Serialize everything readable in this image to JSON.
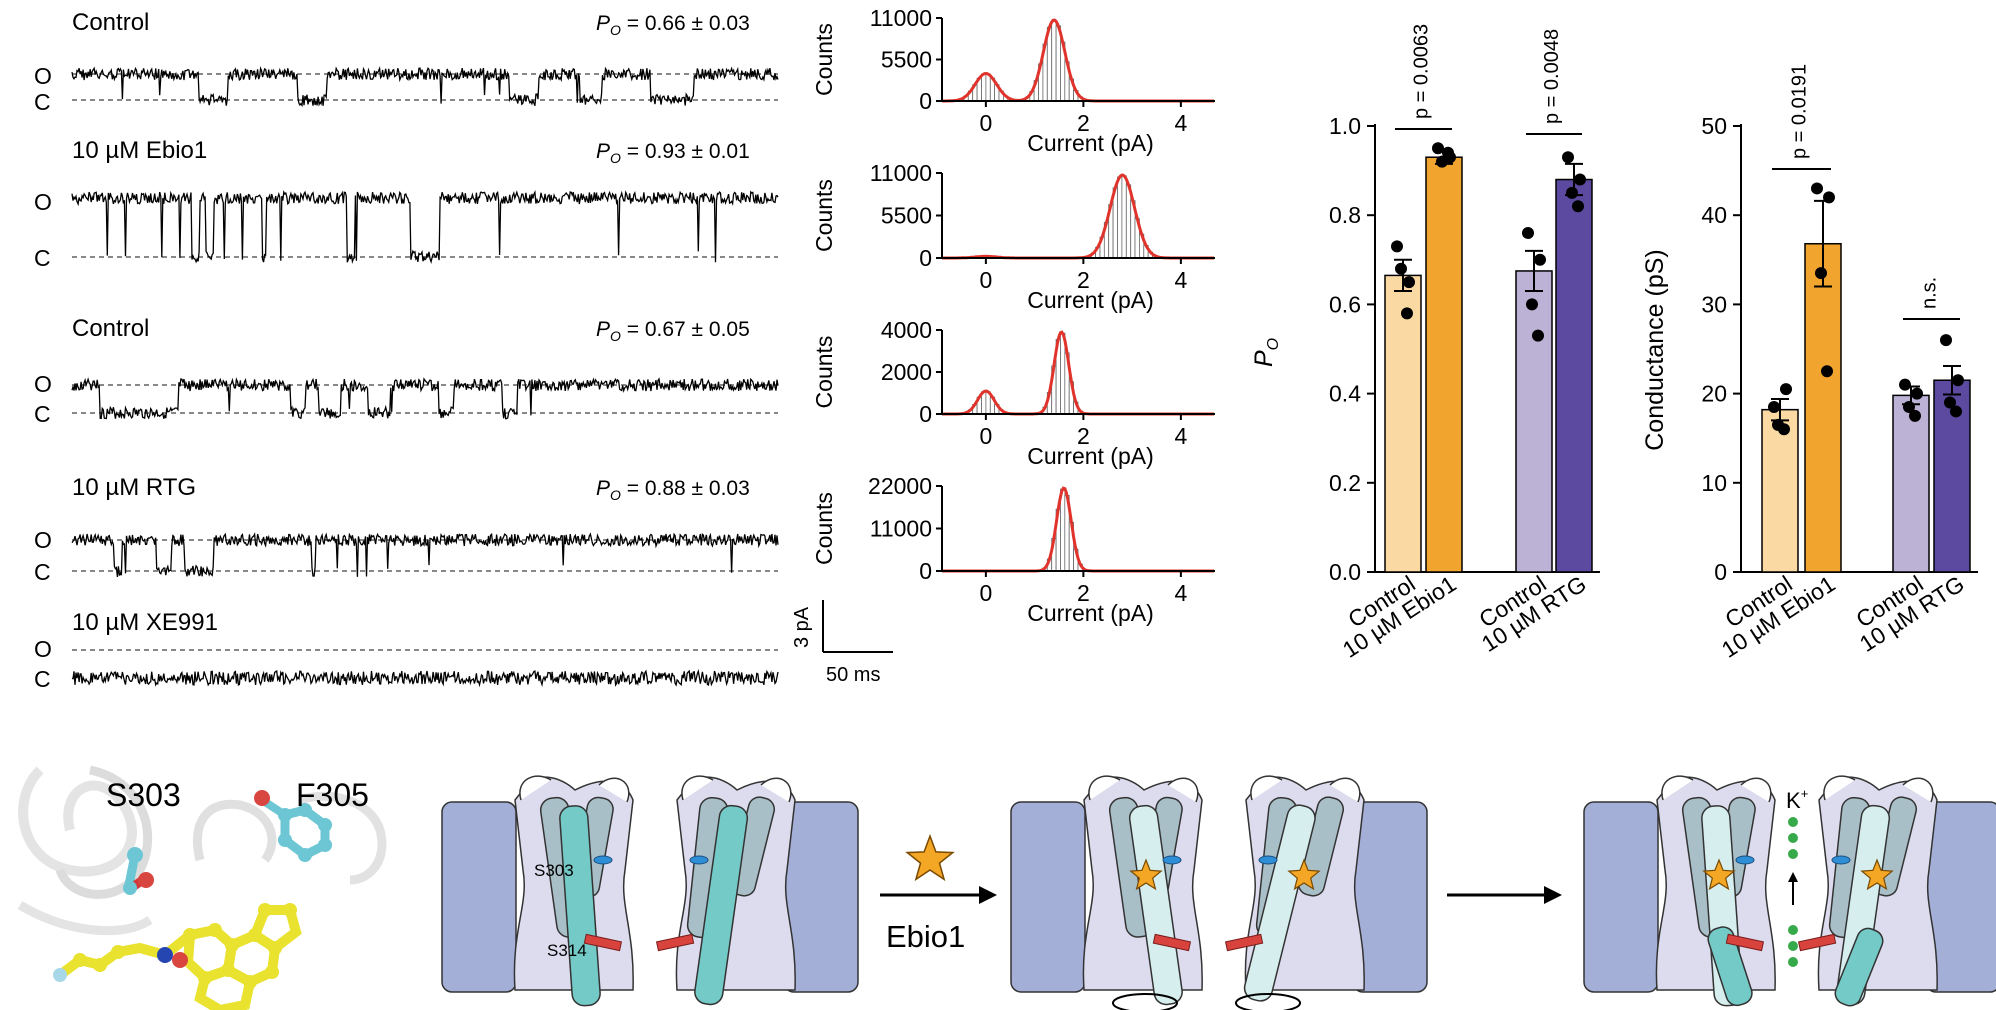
{
  "traces": [
    {
      "label": "Control",
      "po_text": " = 0.66 ± 0.03",
      "o_label": "O",
      "c_label": "C"
    },
    {
      "label": "10 µM Ebio1",
      "po_text": " = 0.93 ± 0.01",
      "o_label": "O",
      "c_label": "C"
    },
    {
      "label": "Control",
      "po_text": " = 0.67 ± 0.05",
      "o_label": "O",
      "c_label": "C"
    },
    {
      "label": "10 µM RTG",
      "po_text": " = 0.88 ± 0.03",
      "o_label": "O",
      "c_label": "C"
    },
    {
      "label": "10 µM XE991",
      "po_text": "",
      "o_label": "O",
      "c_label": "C"
    }
  ],
  "po_symbol": "P",
  "po_subscript": "O",
  "scale_bar": {
    "vertical": "3 pA",
    "horizontal": "50 ms"
  },
  "histograms": [
    {
      "ylabel": "Counts",
      "xlabel": "Current (pA)",
      "yticks": [
        "0",
        "5500",
        "11000"
      ]
    },
    {
      "ylabel": "Counts",
      "xlabel": "Current (pA)",
      "yticks": [
        "0",
        "5500",
        "11000"
      ]
    },
    {
      "ylabel": "Counts",
      "xlabel": "Current (pA)",
      "yticks": [
        "0",
        "2000",
        "4000"
      ]
    },
    {
      "ylabel": "Counts",
      "xlabel": "Current (pA)",
      "yticks": [
        "0",
        "11000",
        "22000"
      ]
    }
  ],
  "hist_xticks": [
    "0",
    "2",
    "4"
  ],
  "chart_data": [
    {
      "type": "bar",
      "ylabel": "P",
      "ylabel_sub": "O",
      "ylim": [
        0,
        1.0
      ],
      "yticks": [
        "0.0",
        "0.2",
        "0.4",
        "0.6",
        "0.8",
        "1.0"
      ],
      "categories": [
        "Control",
        "10 µM Ebio1",
        "Control",
        "10 µM RTG"
      ],
      "values": [
        0.665,
        0.93,
        0.675,
        0.88
      ],
      "errors": [
        0.035,
        0.015,
        0.045,
        0.035
      ],
      "points": [
        [
          0.73,
          0.65,
          0.68,
          0.58
        ],
        [
          0.95,
          0.93,
          0.92,
          0.94
        ],
        [
          0.76,
          0.7,
          0.6,
          0.53
        ],
        [
          0.93,
          0.88,
          0.85,
          0.82
        ]
      ],
      "colors": [
        "#fbd9a3",
        "#f2a52e",
        "#bcb2d6",
        "#5b4a9f"
      ],
      "annotations": [
        {
          "text": "p = 0.0063",
          "from": 0,
          "to": 1
        },
        {
          "text": "p = 0.0048",
          "from": 2,
          "to": 3
        }
      ]
    },
    {
      "type": "bar",
      "ylabel": "Conductance (pS)",
      "ylim": [
        0,
        50
      ],
      "yticks": [
        "0",
        "10",
        "20",
        "30",
        "40",
        "50"
      ],
      "categories": [
        "Control",
        "10 µM Ebio1",
        "Control",
        "10 µM RTG"
      ],
      "values": [
        18.2,
        36.8,
        19.8,
        21.5
      ],
      "errors": [
        1.2,
        4.8,
        1.0,
        1.6
      ],
      "points": [
        [
          18.5,
          20.5,
          16.5,
          16.0
        ],
        [
          43.0,
          42.0,
          33.5,
          22.5
        ],
        [
          21.0,
          20.0,
          18.5,
          17.5
        ],
        [
          26.0,
          21.5,
          19.0,
          18.0
        ]
      ],
      "colors": [
        "#fbd9a3",
        "#f2a52e",
        "#bcb2d6",
        "#5b4a9f"
      ],
      "annotations": [
        {
          "text": "p = 0.0191",
          "from": 0,
          "to": 1
        },
        {
          "text": "n.s.",
          "from": 2,
          "to": 3
        }
      ]
    }
  ],
  "structure": {
    "res1": "S303",
    "res2": "F305"
  },
  "schematic": {
    "label_s303": "S303",
    "label_s314": "S314",
    "drug_label": "Ebio1",
    "ion_label": "K"
  }
}
